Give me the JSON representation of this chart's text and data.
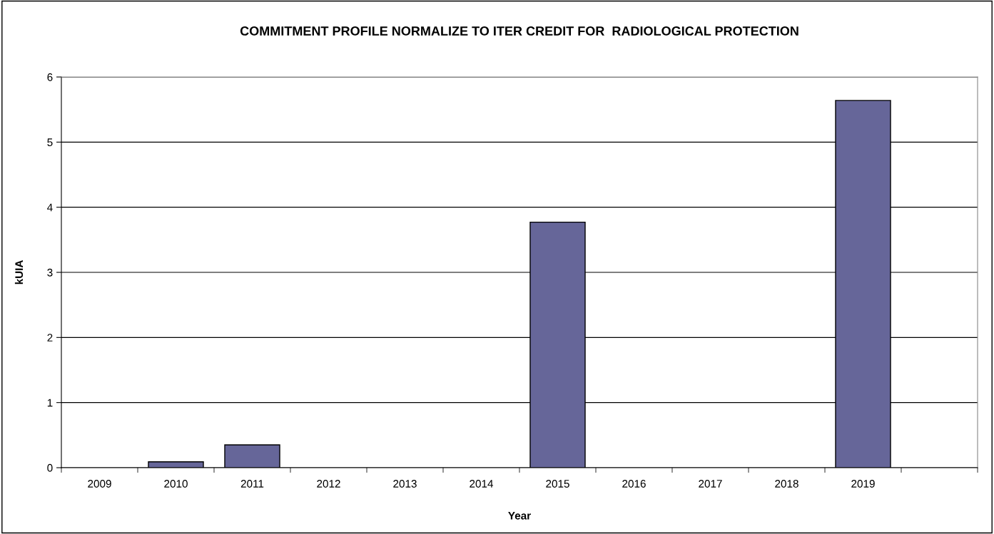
{
  "chart_data": {
    "type": "bar",
    "title": "COMMITMENT PROFILE NORMALIZE TO ITER CREDIT FOR  RADIOLOGICAL PROTECTION",
    "xlabel": "Year",
    "ylabel": "kUIA",
    "categories": [
      "2009",
      "2010",
      "2011",
      "2012",
      "2013",
      "2014",
      "2015",
      "2016",
      "2017",
      "2018",
      "2019",
      null
    ],
    "values": [
      0,
      0.09,
      0.35,
      0,
      0,
      0,
      3.77,
      0,
      0,
      0,
      5.64,
      0
    ],
    "color": "#666699",
    "ylim": [
      0,
      6
    ],
    "yticks": [
      0,
      1,
      2,
      3,
      4,
      5,
      6
    ],
    "grid": "y",
    "legend": false
  }
}
